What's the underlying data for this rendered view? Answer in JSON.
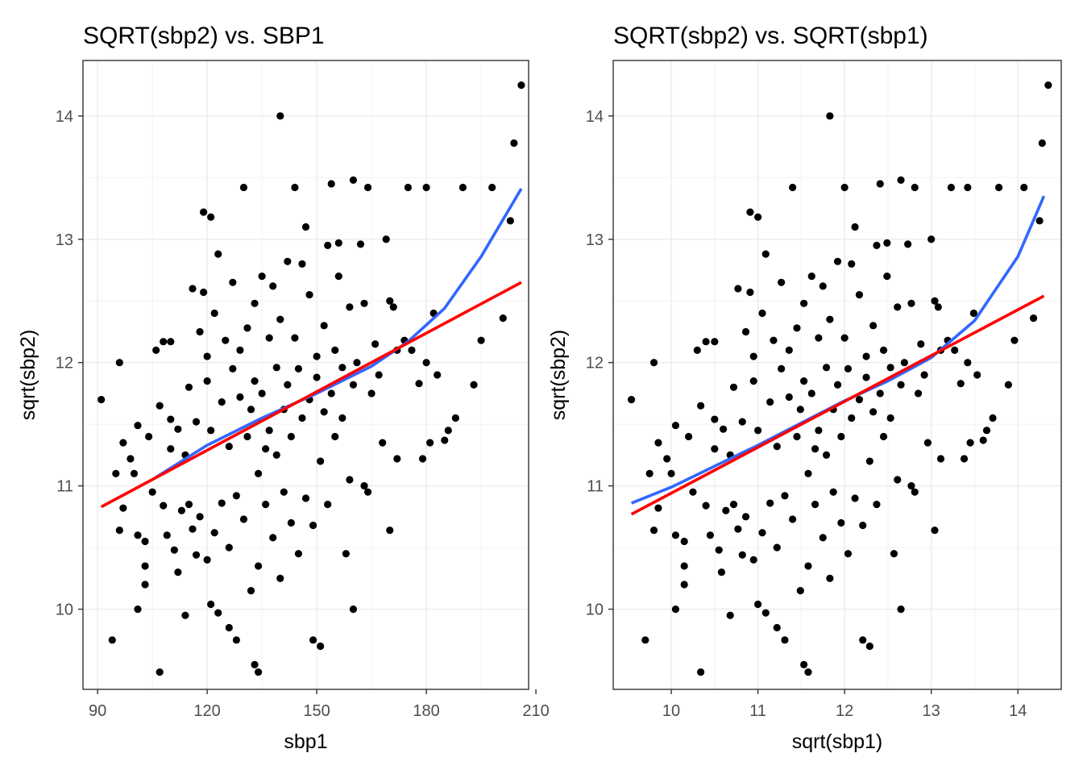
{
  "chart_data": [
    {
      "type": "scatter",
      "title": "SQRT(sbp2) vs. SBP1",
      "xlabel": "sbp1",
      "ylabel": "sqrt(sbp2)",
      "xlim": [
        86,
        208
      ],
      "ylim": [
        9.35,
        14.45
      ],
      "xticks": [
        90,
        120,
        150,
        180,
        210
      ],
      "yticks": [
        10,
        11,
        12,
        13,
        14
      ],
      "grid": true,
      "fits": [
        {
          "name": "",
          "method": "loess",
          "color": "#3366FF",
          "x": [
            106,
            120,
            135,
            150,
            165,
            175,
            185,
            195,
            206
          ],
          "y": [
            11.07,
            11.33,
            11.55,
            11.75,
            11.97,
            12.17,
            12.44,
            12.86,
            13.41
          ]
        },
        {
          "name": "",
          "method": "linear",
          "color": "#FF0000",
          "x": [
            91,
            206
          ],
          "y": [
            10.83,
            12.65
          ]
        }
      ],
      "points": [
        [
          91,
          11.7
        ],
        [
          94,
          9.75
        ],
        [
          95,
          11.1
        ],
        [
          96,
          10.64
        ],
        [
          96,
          12.0
        ],
        [
          97,
          10.82
        ],
        [
          97,
          11.35
        ],
        [
          99,
          11.22
        ],
        [
          100,
          11.1
        ],
        [
          101,
          10.0
        ],
        [
          101,
          10.6
        ],
        [
          101,
          11.49
        ],
        [
          103,
          10.35
        ],
        [
          103,
          10.2
        ],
        [
          103,
          10.55
        ],
        [
          104,
          11.4
        ],
        [
          105,
          10.95
        ],
        [
          106,
          12.1
        ],
        [
          107,
          9.49
        ],
        [
          107,
          11.65
        ],
        [
          108,
          10.84
        ],
        [
          108,
          12.17
        ],
        [
          109,
          10.6
        ],
        [
          110,
          11.3
        ],
        [
          110,
          11.54
        ],
        [
          110,
          12.17
        ],
        [
          111,
          10.48
        ],
        [
          112,
          10.3
        ],
        [
          112,
          11.46
        ],
        [
          113,
          10.8
        ],
        [
          114,
          9.95
        ],
        [
          114,
          11.25
        ],
        [
          115,
          10.85
        ],
        [
          115,
          11.8
        ],
        [
          116,
          12.6
        ],
        [
          116,
          10.65
        ],
        [
          117,
          10.44
        ],
        [
          117,
          11.52
        ],
        [
          118,
          12.25
        ],
        [
          118,
          10.75
        ],
        [
          119,
          12.57
        ],
        [
          119,
          13.22
        ],
        [
          120,
          10.4
        ],
        [
          120,
          11.85
        ],
        [
          120,
          12.05
        ],
        [
          121,
          10.04
        ],
        [
          121,
          11.45
        ],
        [
          121,
          13.18
        ],
        [
          122,
          10.62
        ],
        [
          122,
          12.4
        ],
        [
          123,
          9.97
        ],
        [
          123,
          12.88
        ],
        [
          124,
          10.86
        ],
        [
          124,
          11.68
        ],
        [
          125,
          12.18
        ],
        [
          126,
          9.85
        ],
        [
          126,
          10.5
        ],
        [
          126,
          11.32
        ],
        [
          127,
          11.95
        ],
        [
          127,
          12.65
        ],
        [
          128,
          10.92
        ],
        [
          128,
          9.75
        ],
        [
          129,
          11.72
        ],
        [
          129,
          12.1
        ],
        [
          130,
          13.42
        ],
        [
          130,
          10.73
        ],
        [
          131,
          11.4
        ],
        [
          131,
          12.28
        ],
        [
          132,
          10.15
        ],
        [
          132,
          11.62
        ],
        [
          133,
          9.55
        ],
        [
          133,
          11.85
        ],
        [
          133,
          12.48
        ],
        [
          134,
          9.49
        ],
        [
          134,
          10.35
        ],
        [
          134,
          11.1
        ],
        [
          135,
          11.75
        ],
        [
          135,
          12.7
        ],
        [
          136,
          11.3
        ],
        [
          136,
          10.85
        ],
        [
          137,
          11.45
        ],
        [
          137,
          12.2
        ],
        [
          138,
          10.58
        ],
        [
          138,
          12.62
        ],
        [
          139,
          11.25
        ],
        [
          139,
          11.96
        ],
        [
          140,
          10.25
        ],
        [
          140,
          14.0
        ],
        [
          140,
          12.35
        ],
        [
          141,
          11.62
        ],
        [
          141,
          10.95
        ],
        [
          142,
          12.82
        ],
        [
          142,
          11.82
        ],
        [
          143,
          10.7
        ],
        [
          143,
          11.4
        ],
        [
          144,
          13.42
        ],
        [
          144,
          12.2
        ],
        [
          145,
          10.45
        ],
        [
          145,
          11.95
        ],
        [
          146,
          12.8
        ],
        [
          146,
          11.55
        ],
        [
          147,
          10.9
        ],
        [
          147,
          13.1
        ],
        [
          148,
          11.7
        ],
        [
          148,
          12.55
        ],
        [
          149,
          10.68
        ],
        [
          149,
          9.75
        ],
        [
          150,
          11.88
        ],
        [
          150,
          12.05
        ],
        [
          151,
          9.7
        ],
        [
          151,
          11.2
        ],
        [
          152,
          12.3
        ],
        [
          152,
          11.6
        ],
        [
          153,
          12.95
        ],
        [
          153,
          10.85
        ],
        [
          154,
          13.45
        ],
        [
          154,
          11.75
        ],
        [
          155,
          12.1
        ],
        [
          155,
          11.4
        ],
        [
          156,
          12.7
        ],
        [
          156,
          12.97
        ],
        [
          157,
          11.96
        ],
        [
          157,
          11.55
        ],
        [
          158,
          10.45
        ],
        [
          159,
          12.45
        ],
        [
          159,
          11.05
        ],
        [
          160,
          10.0
        ],
        [
          160,
          13.48
        ],
        [
          160,
          11.82
        ],
        [
          161,
          12.0
        ],
        [
          162,
          12.96
        ],
        [
          163,
          11.0
        ],
        [
          163,
          12.48
        ],
        [
          164,
          10.95
        ],
        [
          164,
          13.42
        ],
        [
          165,
          11.75
        ],
        [
          166,
          12.15
        ],
        [
          167,
          11.9
        ],
        [
          168,
          11.35
        ],
        [
          169,
          13.0
        ],
        [
          170,
          10.64
        ],
        [
          170,
          12.5
        ],
        [
          171,
          12.45
        ],
        [
          172,
          11.22
        ],
        [
          172,
          12.1
        ],
        [
          174,
          12.18
        ],
        [
          175,
          13.42
        ],
        [
          176,
          12.1
        ],
        [
          178,
          11.83
        ],
        [
          179,
          11.22
        ],
        [
          180,
          13.42
        ],
        [
          180,
          12.0
        ],
        [
          181,
          11.35
        ],
        [
          182,
          12.4
        ],
        [
          183,
          11.9
        ],
        [
          185,
          11.37
        ],
        [
          186,
          11.45
        ],
        [
          188,
          11.55
        ],
        [
          190,
          13.42
        ],
        [
          193,
          11.82
        ],
        [
          195,
          12.18
        ],
        [
          198,
          13.42
        ],
        [
          201,
          12.36
        ],
        [
          203,
          13.15
        ],
        [
          204,
          13.78
        ],
        [
          206,
          14.25
        ]
      ]
    },
    {
      "type": "scatter",
      "title": "SQRT(sbp2) vs. SQRT(sbp1)",
      "xlabel": "sqrt(sbp1)",
      "ylabel": "sqrt(sbp2)",
      "xlim": [
        9.33,
        14.5
      ],
      "ylim": [
        9.35,
        14.45
      ],
      "xticks": [
        10,
        11,
        12,
        13,
        14
      ],
      "yticks": [
        10,
        11,
        12,
        13,
        14
      ],
      "grid": true,
      "fits": [
        {
          "name": "",
          "method": "loess",
          "color": "#3366FF",
          "x": [
            9.54,
            10.0,
            10.5,
            11.0,
            11.5,
            12.0,
            12.5,
            13.0,
            13.5,
            14.0,
            14.3
          ],
          "y": [
            10.86,
            10.99,
            11.16,
            11.33,
            11.51,
            11.69,
            11.85,
            12.04,
            12.34,
            12.86,
            13.35
          ]
        },
        {
          "name": "",
          "method": "linear",
          "color": "#FF0000",
          "x": [
            9.54,
            14.3
          ],
          "y": [
            10.77,
            12.54
          ]
        }
      ],
      "points": [
        [
          9.54,
          11.7
        ],
        [
          9.7,
          9.75
        ],
        [
          9.75,
          11.1
        ],
        [
          9.8,
          10.64
        ],
        [
          9.8,
          12.0
        ],
        [
          9.85,
          10.82
        ],
        [
          9.85,
          11.35
        ],
        [
          9.95,
          11.22
        ],
        [
          10.0,
          11.1
        ],
        [
          10.05,
          10.0
        ],
        [
          10.05,
          10.6
        ],
        [
          10.05,
          11.49
        ],
        [
          10.15,
          10.35
        ],
        [
          10.15,
          10.2
        ],
        [
          10.15,
          10.55
        ],
        [
          10.2,
          11.4
        ],
        [
          10.25,
          10.95
        ],
        [
          10.3,
          12.1
        ],
        [
          10.34,
          9.49
        ],
        [
          10.34,
          11.65
        ],
        [
          10.4,
          10.84
        ],
        [
          10.4,
          12.17
        ],
        [
          10.45,
          10.6
        ],
        [
          10.5,
          11.3
        ],
        [
          10.5,
          11.54
        ],
        [
          10.5,
          12.17
        ],
        [
          10.55,
          10.48
        ],
        [
          10.58,
          10.3
        ],
        [
          10.6,
          11.46
        ],
        [
          10.63,
          10.8
        ],
        [
          10.68,
          9.95
        ],
        [
          10.68,
          11.25
        ],
        [
          10.72,
          10.85
        ],
        [
          10.72,
          11.8
        ],
        [
          10.77,
          12.6
        ],
        [
          10.77,
          10.65
        ],
        [
          10.82,
          10.44
        ],
        [
          10.82,
          11.52
        ],
        [
          10.86,
          12.25
        ],
        [
          10.86,
          10.75
        ],
        [
          10.91,
          12.57
        ],
        [
          10.91,
          13.22
        ],
        [
          10.95,
          10.4
        ],
        [
          10.95,
          11.85
        ],
        [
          10.95,
          12.05
        ],
        [
          11.0,
          10.04
        ],
        [
          11.0,
          11.45
        ],
        [
          11.0,
          13.18
        ],
        [
          11.05,
          10.62
        ],
        [
          11.05,
          12.4
        ],
        [
          11.09,
          9.97
        ],
        [
          11.09,
          12.88
        ],
        [
          11.14,
          10.86
        ],
        [
          11.14,
          11.68
        ],
        [
          11.18,
          12.18
        ],
        [
          11.22,
          9.85
        ],
        [
          11.22,
          10.5
        ],
        [
          11.22,
          11.32
        ],
        [
          11.27,
          11.95
        ],
        [
          11.27,
          12.65
        ],
        [
          11.31,
          10.92
        ],
        [
          11.31,
          9.75
        ],
        [
          11.36,
          11.72
        ],
        [
          11.36,
          12.1
        ],
        [
          11.4,
          13.42
        ],
        [
          11.4,
          10.73
        ],
        [
          11.45,
          11.4
        ],
        [
          11.45,
          12.28
        ],
        [
          11.49,
          10.15
        ],
        [
          11.49,
          11.62
        ],
        [
          11.53,
          9.55
        ],
        [
          11.53,
          11.85
        ],
        [
          11.53,
          12.48
        ],
        [
          11.58,
          9.49
        ],
        [
          11.58,
          10.35
        ],
        [
          11.58,
          11.1
        ],
        [
          11.62,
          11.75
        ],
        [
          11.62,
          12.7
        ],
        [
          11.66,
          11.3
        ],
        [
          11.66,
          10.85
        ],
        [
          11.7,
          11.45
        ],
        [
          11.7,
          12.2
        ],
        [
          11.75,
          10.58
        ],
        [
          11.75,
          12.62
        ],
        [
          11.79,
          11.25
        ],
        [
          11.79,
          11.96
        ],
        [
          11.83,
          10.25
        ],
        [
          11.83,
          14.0
        ],
        [
          11.83,
          12.35
        ],
        [
          11.87,
          11.62
        ],
        [
          11.87,
          10.95
        ],
        [
          11.92,
          12.82
        ],
        [
          11.92,
          11.82
        ],
        [
          11.96,
          10.7
        ],
        [
          11.96,
          11.4
        ],
        [
          12.0,
          13.42
        ],
        [
          12.0,
          12.2
        ],
        [
          12.04,
          10.45
        ],
        [
          12.04,
          11.95
        ],
        [
          12.08,
          12.8
        ],
        [
          12.08,
          11.55
        ],
        [
          12.12,
          10.9
        ],
        [
          12.12,
          13.1
        ],
        [
          12.17,
          11.7
        ],
        [
          12.17,
          12.55
        ],
        [
          12.21,
          10.68
        ],
        [
          12.21,
          9.75
        ],
        [
          12.25,
          11.88
        ],
        [
          12.25,
          12.05
        ],
        [
          12.29,
          9.7
        ],
        [
          12.29,
          11.2
        ],
        [
          12.33,
          12.3
        ],
        [
          12.33,
          11.6
        ],
        [
          12.37,
          12.95
        ],
        [
          12.37,
          10.85
        ],
        [
          12.41,
          13.45
        ],
        [
          12.41,
          11.75
        ],
        [
          12.45,
          12.1
        ],
        [
          12.45,
          11.4
        ],
        [
          12.49,
          12.7
        ],
        [
          12.49,
          12.97
        ],
        [
          12.53,
          11.96
        ],
        [
          12.53,
          11.55
        ],
        [
          12.57,
          10.45
        ],
        [
          12.61,
          12.45
        ],
        [
          12.61,
          11.05
        ],
        [
          12.65,
          10.0
        ],
        [
          12.65,
          13.48
        ],
        [
          12.65,
          11.82
        ],
        [
          12.69,
          12.0
        ],
        [
          12.73,
          12.96
        ],
        [
          12.77,
          11.0
        ],
        [
          12.77,
          12.48
        ],
        [
          12.81,
          10.95
        ],
        [
          12.81,
          13.42
        ],
        [
          12.85,
          11.75
        ],
        [
          12.88,
          12.15
        ],
        [
          12.92,
          11.9
        ],
        [
          12.96,
          11.35
        ],
        [
          13.0,
          13.0
        ],
        [
          13.04,
          10.64
        ],
        [
          13.04,
          12.5
        ],
        [
          13.08,
          12.45
        ],
        [
          13.11,
          11.22
        ],
        [
          13.11,
          12.1
        ],
        [
          13.19,
          12.18
        ],
        [
          13.23,
          13.42
        ],
        [
          13.27,
          12.1
        ],
        [
          13.34,
          11.83
        ],
        [
          13.38,
          11.22
        ],
        [
          13.42,
          13.42
        ],
        [
          13.42,
          12.0
        ],
        [
          13.45,
          11.35
        ],
        [
          13.49,
          12.4
        ],
        [
          13.53,
          11.9
        ],
        [
          13.6,
          11.37
        ],
        [
          13.64,
          11.45
        ],
        [
          13.71,
          11.55
        ],
        [
          13.78,
          13.42
        ],
        [
          13.89,
          11.82
        ],
        [
          13.96,
          12.18
        ],
        [
          14.07,
          13.42
        ],
        [
          14.18,
          12.36
        ],
        [
          14.25,
          13.15
        ],
        [
          14.28,
          13.78
        ],
        [
          14.35,
          14.25
        ]
      ]
    }
  ]
}
